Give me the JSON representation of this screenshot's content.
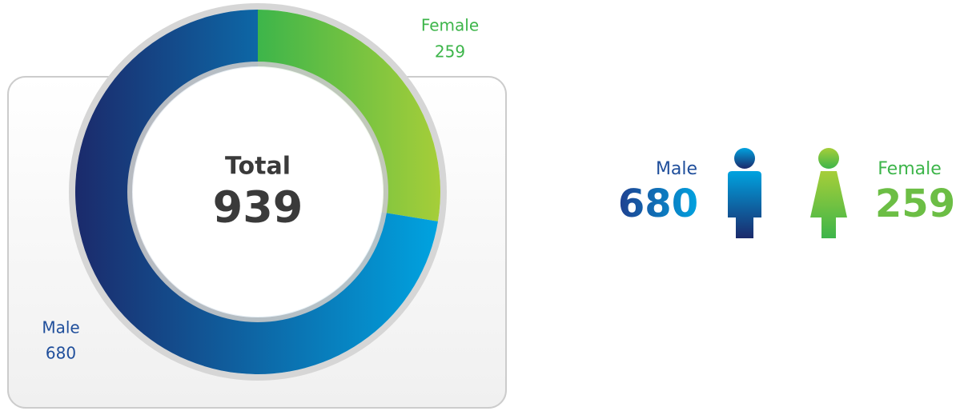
{
  "chart_data": {
    "type": "donut",
    "categories": [
      "Female",
      "Male"
    ],
    "values": [
      259,
      680
    ],
    "colors": [
      [
        "#3db54a",
        "#a6ce39"
      ],
      [
        "#1b2a6b",
        "#00a3e0"
      ]
    ],
    "center_label": "Total",
    "center_value": 939
  }
}
